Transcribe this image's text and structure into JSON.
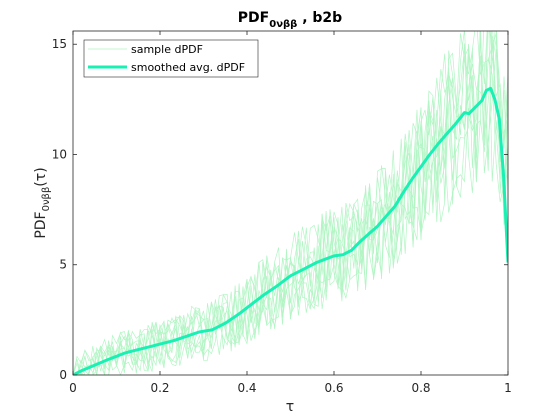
{
  "chart_data": {
    "type": "line",
    "title": "PDF",
    "title_sub": "0νββ",
    "title_suffix": " , b2b",
    "xlabel": "τ",
    "ylabel": "PDF",
    "ylabel_sub": "0νββ",
    "ylabel_suffix": "(τ)",
    "xlim": [
      0,
      1
    ],
    "ylim": [
      0,
      15.6
    ],
    "xticks": [
      "0",
      "0.2",
      "0.4",
      "0.6",
      "0.8",
      "1"
    ],
    "xtick_values": [
      0,
      0.2,
      0.4,
      0.6,
      0.8,
      1
    ],
    "yticks": [
      "0",
      "5",
      "10",
      "15"
    ],
    "ytick_values": [
      0,
      5,
      10,
      15
    ],
    "grid": false,
    "legend_position": "top-left",
    "colors": {
      "sample": "#b3f5c5",
      "smoothed": "#19f0b4",
      "axis": "#262626"
    },
    "series": [
      {
        "name": "smoothed avg. dPDF",
        "x": [
          0,
          0.02,
          0.05,
          0.08,
          0.1,
          0.12,
          0.15,
          0.17,
          0.2,
          0.23,
          0.26,
          0.29,
          0.32,
          0.35,
          0.38,
          0.41,
          0.44,
          0.47,
          0.5,
          0.53,
          0.56,
          0.58,
          0.6,
          0.62,
          0.64,
          0.66,
          0.68,
          0.7,
          0.72,
          0.74,
          0.76,
          0.78,
          0.8,
          0.82,
          0.84,
          0.86,
          0.88,
          0.9,
          0.91,
          0.92,
          0.93,
          0.94,
          0.95,
          0.96,
          0.97,
          0.98,
          0.99,
          1.0
        ],
        "values": [
          0,
          0.2,
          0.45,
          0.7,
          0.85,
          1.0,
          1.15,
          1.25,
          1.4,
          1.55,
          1.75,
          1.95,
          2.05,
          2.35,
          2.75,
          3.2,
          3.65,
          4.05,
          4.5,
          4.8,
          5.1,
          5.25,
          5.4,
          5.45,
          5.65,
          6.05,
          6.4,
          6.75,
          7.2,
          7.65,
          8.3,
          8.9,
          9.45,
          10.0,
          10.5,
          10.95,
          11.4,
          11.9,
          11.85,
          12.05,
          12.25,
          12.45,
          12.9,
          13.0,
          12.5,
          11.6,
          9.0,
          5.1
        ]
      }
    ]
  },
  "legend": {
    "sample_label": "sample dPDF",
    "smoothed_label": "smoothed avg. dPDF"
  }
}
